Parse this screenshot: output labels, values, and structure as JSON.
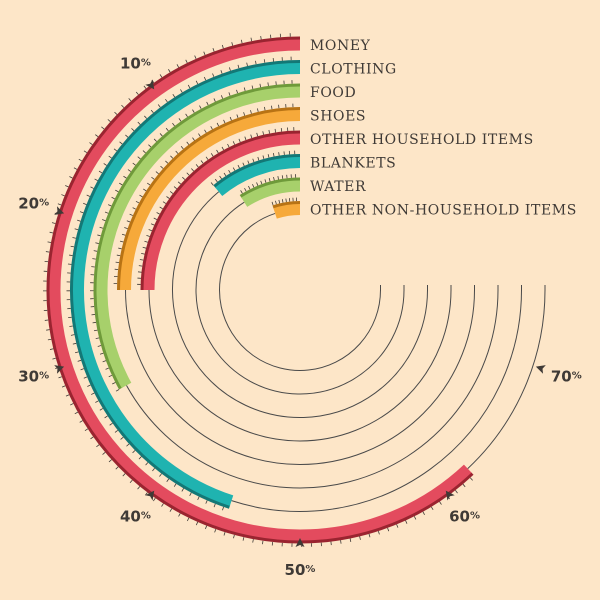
{
  "colors": {
    "background": "#fde6c8",
    "guide_line": "#4a4a4a",
    "text": "#3f3a36",
    "tick": "#3f3a36"
  },
  "chart_data": {
    "type": "radial-bar",
    "scale": {
      "min": 0,
      "max": 100,
      "unit": "%"
    },
    "grid": false,
    "legend": "labels at bar starts",
    "series": [
      {
        "name": "MONEY",
        "value": 62,
        "color": "#e34b5e",
        "shade": "#9a2430"
      },
      {
        "name": "CLOTHING",
        "value": 45,
        "color": "#1fb3b0",
        "shade": "#137876"
      },
      {
        "name": "FOOD",
        "value": 33,
        "color": "#a7d06b",
        "shade": "#6f9a3a"
      },
      {
        "name": "SHOES",
        "value": 25,
        "color": "#f6a93a",
        "shade": "#b87314"
      },
      {
        "name": "OTHER HOUSEHOLD ITEMS",
        "value": 25,
        "color": "#e34b5e",
        "shade": "#9a2430"
      },
      {
        "name": "BLANKETS",
        "value": 11,
        "color": "#1fb3b0",
        "shade": "#137876"
      },
      {
        "name": "WATER",
        "value": 9,
        "color": "#a7d06b",
        "shade": "#6f9a3a"
      },
      {
        "name": "OTHER NON-HOUSEHOLD ITEMS",
        "value": 5,
        "color": "#f6a93a",
        "shade": "#b87314"
      }
    ],
    "axis_labels": [
      {
        "value": 10,
        "label": "10",
        "sign": "%"
      },
      {
        "value": 20,
        "label": "20",
        "sign": "%"
      },
      {
        "value": 30,
        "label": "30",
        "sign": "%"
      },
      {
        "value": 40,
        "label": "40",
        "sign": "%"
      },
      {
        "value": 50,
        "label": "50",
        "sign": "%"
      },
      {
        "value": 60,
        "label": "60",
        "sign": "%"
      },
      {
        "value": 70,
        "label": "70",
        "sign": "%"
      }
    ]
  }
}
